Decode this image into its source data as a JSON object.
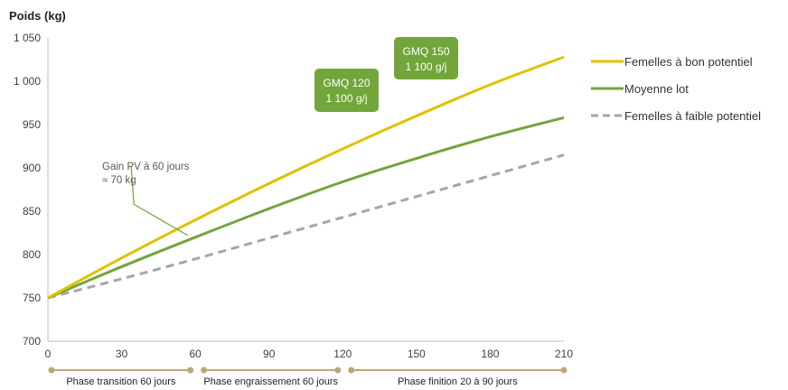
{
  "chart_data": {
    "type": "line",
    "ylabel": "Poids (kg)",
    "xlim": [
      0,
      210
    ],
    "ylim": [
      700,
      1050
    ],
    "x_ticks": [
      0,
      30,
      60,
      90,
      120,
      150,
      180,
      210
    ],
    "y_ticks": [
      700,
      750,
      800,
      850,
      900,
      950,
      1000,
      1050
    ],
    "y_tick_labels": [
      "700",
      "750",
      "800",
      "850",
      "900",
      "950",
      "1 000",
      "1 050"
    ],
    "grid": false,
    "legend_position": "right",
    "x": [
      0,
      30,
      60,
      90,
      120,
      150,
      180,
      210
    ],
    "series": [
      {
        "name": "Femelles à bon potentiel",
        "color": "#e3c000",
        "style": "solid",
        "values": [
          750,
          796,
          840,
          882,
          922,
          960,
          996,
          1028
        ]
      },
      {
        "name": "Moyenne lot",
        "color": "#72a53a",
        "style": "solid",
        "values": [
          750,
          786,
          820,
          853,
          884,
          911,
          936,
          958
        ]
      },
      {
        "name": "Femelles à faible potentiel",
        "color": "#a6a6a6",
        "style": "dashed",
        "values": [
          750,
          772,
          795,
          819,
          843,
          867,
          891,
          915
        ]
      }
    ],
    "annotations": [
      {
        "id": "gain",
        "lines": [
          "Gain PV à 60 jours",
          "≈ 70 kg"
        ],
        "point": [
          57,
          822
        ],
        "anchor": [
          35,
          858
        ]
      },
      {
        "id": "gmq120",
        "lines": [
          "GMQ 120",
          "1 100 g/j"
        ]
      },
      {
        "id": "gmq150",
        "lines": [
          "GMQ 150",
          "1 100 g/j"
        ]
      }
    ],
    "phases": [
      {
        "label": "Phase transition 60 jours",
        "start": 0,
        "end": 58
      },
      {
        "label": "Phase engraissement 60 jours",
        "start": 62,
        "end": 118
      },
      {
        "label": "Phase finition 20 à 90 jours",
        "start": 122,
        "end": 210
      }
    ],
    "box_color": "#72a53a",
    "phase_color": "#b9a97a"
  }
}
